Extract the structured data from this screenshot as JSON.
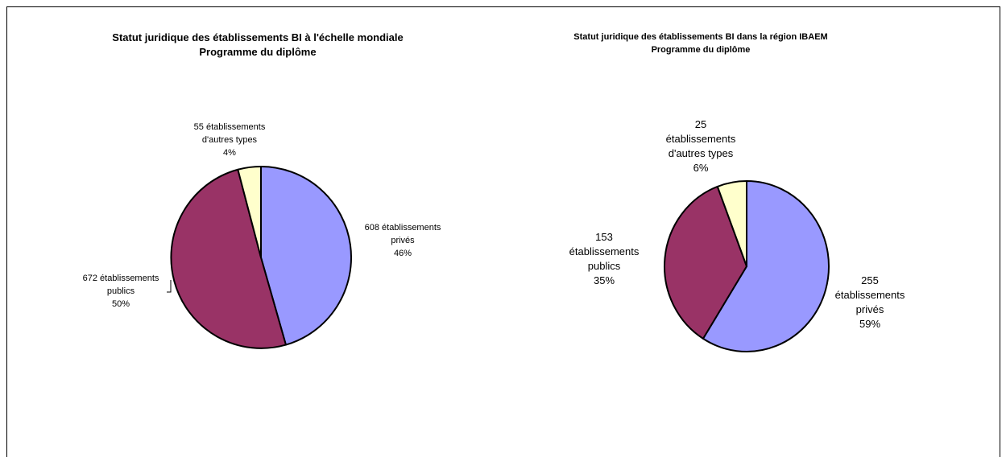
{
  "chart_data": [
    {
      "type": "pie",
      "title": "Statut juridique des établissements BI à l'échelle mondiale",
      "subtitle": "Programme du diplôme",
      "categories": [
        "établissements privés",
        "établissements publics",
        "établissements d'autres types"
      ],
      "values": [
        608,
        672,
        55
      ],
      "percents": [
        "46%",
        "50%",
        "4%"
      ],
      "colors": [
        "#9999ff",
        "#993366",
        "#ffffcc"
      ],
      "labels": [
        [
          "608 établissements",
          "privés",
          "46%"
        ],
        [
          "672 établissements",
          "publics",
          "50%"
        ],
        [
          "55  établissements",
          "d'autres types",
          "4%"
        ]
      ]
    },
    {
      "type": "pie",
      "title": "Statut juridique des établissements BI dans la région IBAEM",
      "subtitle": "Programme du diplôme",
      "categories": [
        "établissements privés",
        "établissements publics",
        "établissements d'autres types"
      ],
      "values": [
        255,
        153,
        25
      ],
      "percents": [
        "59%",
        "35%",
        "6%"
      ],
      "colors": [
        "#9999ff",
        "#993366",
        "#ffffcc"
      ],
      "labels": [
        [
          "255",
          "établissements",
          "privés",
          "59%"
        ],
        [
          "153",
          "établissements",
          "publics",
          "35%"
        ],
        [
          "25",
          "établissements",
          "d'autres types",
          "6%"
        ]
      ]
    }
  ]
}
